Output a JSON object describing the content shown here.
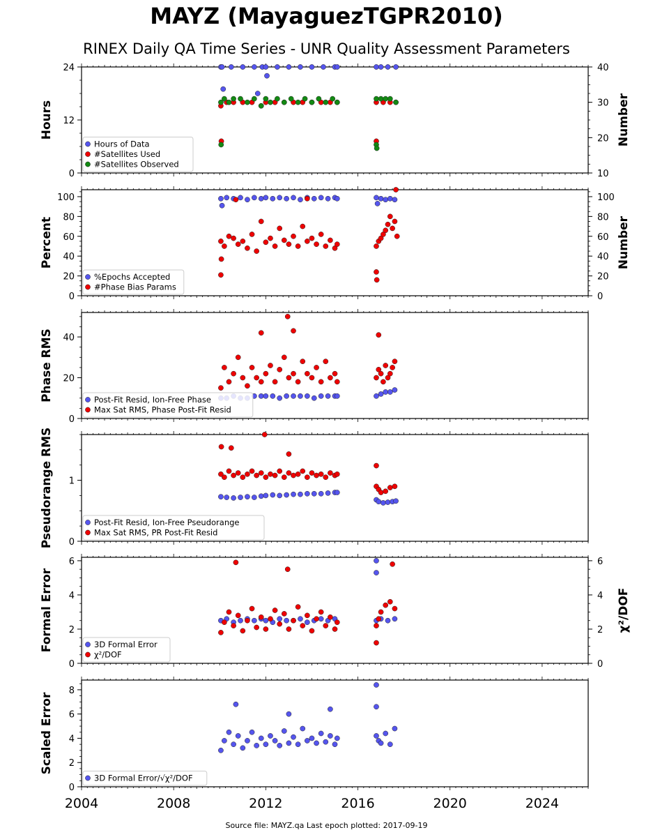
{
  "title": "MAYZ (MayaguezTGPR2010)",
  "subtitle": "RINEX Daily QA Time Series - UNR Quality Assessment Parameters",
  "footer": "Source file: MAYZ.qa Last epoch plotted: 2017-09-19",
  "colors": {
    "blue": "#5555ee",
    "red": "#ee0000",
    "green": "#138a13"
  },
  "x_axis": {
    "range": [
      2004,
      2026
    ],
    "ticks": [
      2004,
      2008,
      2012,
      2016,
      2020,
      2024
    ]
  },
  "chart_data": [
    {
      "type": "scatter",
      "id": "hours",
      "ylabel": "Hours",
      "y2label": "Number",
      "ylim": [
        0,
        24
      ],
      "yticks": [
        0,
        12,
        24
      ],
      "y2lim": [
        10,
        40
      ],
      "y2ticks": [
        10,
        20,
        30,
        40
      ],
      "legend": [
        {
          "label": "Hours of Data",
          "color": "blue"
        },
        {
          "label": "#Satellites Used",
          "color": "red"
        },
        {
          "label": "#Satellites Observed",
          "color": "green"
        }
      ],
      "legend_position": "lower-left",
      "series": [
        {
          "name": "Hours of Data",
          "color": "blue",
          "axis": "left",
          "x": [
            2010.05,
            2010.1,
            2010.5,
            2011.0,
            2011.5,
            2011.85,
            2012.0,
            2012.5,
            2013.0,
            2013.5,
            2014.0,
            2014.5,
            2015.0,
            2015.1,
            2016.8,
            2017.0,
            2017.3,
            2017.65,
            2010.15,
            2011.65,
            2012.05
          ],
          "y": [
            24,
            24,
            24,
            24,
            24,
            24,
            24,
            24,
            24,
            24,
            24,
            24,
            24,
            24,
            24,
            24,
            24,
            24,
            19,
            18,
            22
          ]
        },
        {
          "name": "#Satellites Used",
          "color": "red",
          "axis": "right",
          "x": [
            2010.05,
            2010.3,
            2010.6,
            2011.0,
            2011.4,
            2011.8,
            2012.0,
            2012.4,
            2012.8,
            2013.2,
            2013.6,
            2014.0,
            2014.4,
            2014.8,
            2015.1,
            2016.8,
            2017.1,
            2017.4,
            2017.65,
            2010.07,
            2016.8
          ],
          "y": [
            29,
            30,
            30,
            30,
            30,
            29,
            30,
            30,
            30,
            30,
            30,
            30,
            30,
            30,
            30,
            30,
            30,
            30,
            30,
            19,
            19
          ]
        },
        {
          "name": "#Satellites Observed",
          "color": "green",
          "axis": "right",
          "x": [
            2010.05,
            2010.2,
            2010.4,
            2010.6,
            2010.9,
            2011.2,
            2011.5,
            2011.8,
            2012.0,
            2012.2,
            2012.5,
            2012.8,
            2013.1,
            2013.4,
            2013.7,
            2014.0,
            2014.3,
            2014.6,
            2014.9,
            2015.1,
            2016.8,
            2017.0,
            2017.2,
            2017.4,
            2017.65,
            2010.06,
            2016.8,
            2016.82
          ],
          "y": [
            30,
            31,
            30,
            31,
            31,
            30,
            31,
            29,
            31,
            30,
            31,
            30,
            31,
            30,
            31,
            30,
            31,
            30,
            31,
            30,
            31,
            31,
            31,
            31,
            30,
            18,
            18,
            17
          ]
        }
      ]
    },
    {
      "type": "scatter",
      "id": "percent",
      "ylabel": "Percent",
      "y2label": "Number",
      "ylim": [
        0,
        107
      ],
      "yticks": [
        0,
        20,
        40,
        60,
        80,
        100
      ],
      "y2lim": [
        0,
        107
      ],
      "y2ticks": [
        0,
        20,
        40,
        60,
        80,
        100
      ],
      "legend": [
        {
          "label": "%Epochs Accepted",
          "color": "blue"
        },
        {
          "label": "#Phase Bias Params",
          "color": "red"
        }
      ],
      "legend_position": "lower-left",
      "series": [
        {
          "name": "%Epochs Accepted",
          "color": "blue",
          "axis": "left",
          "x": [
            2010.05,
            2010.3,
            2010.6,
            2010.9,
            2011.2,
            2011.5,
            2011.8,
            2012.0,
            2012.3,
            2012.6,
            2012.9,
            2013.2,
            2013.5,
            2013.8,
            2014.1,
            2014.4,
            2014.7,
            2015.0,
            2015.1,
            2016.8,
            2017.0,
            2017.2,
            2017.4,
            2017.6,
            2010.1,
            2016.85
          ],
          "y": [
            98,
            99,
            98,
            99,
            97,
            99,
            98,
            99,
            98,
            99,
            98,
            99,
            97,
            99,
            98,
            99,
            98,
            99,
            98,
            99,
            98,
            97,
            98,
            97,
            91,
            93
          ]
        },
        {
          "name": "#Phase Bias Params",
          "color": "red",
          "axis": "right",
          "x": [
            2010.05,
            2010.2,
            2010.4,
            2010.6,
            2010.8,
            2011.0,
            2011.2,
            2011.4,
            2011.6,
            2011.8,
            2012.0,
            2012.2,
            2012.4,
            2012.6,
            2012.8,
            2013.0,
            2013.2,
            2013.4,
            2013.6,
            2013.8,
            2014.0,
            2014.2,
            2014.4,
            2014.6,
            2014.8,
            2015.0,
            2015.1,
            2016.8,
            2016.9,
            2017.0,
            2017.1,
            2017.2,
            2017.3,
            2017.4,
            2017.5,
            2017.6,
            2017.7,
            2010.05,
            2010.07,
            2016.8,
            2016.82,
            2017.65,
            2010.7,
            2013.8
          ],
          "y": [
            55,
            50,
            60,
            58,
            52,
            55,
            48,
            62,
            45,
            75,
            54,
            58,
            50,
            68,
            56,
            52,
            60,
            50,
            70,
            55,
            58,
            52,
            62,
            50,
            56,
            48,
            52,
            50,
            55,
            58,
            62,
            66,
            72,
            80,
            68,
            75,
            60,
            21,
            37,
            24,
            16,
            107,
            97,
            98
          ]
        }
      ]
    },
    {
      "type": "scatter",
      "id": "phase",
      "ylabel": "Phase RMS",
      "ylim": [
        0,
        52
      ],
      "yticks": [
        0,
        20,
        40
      ],
      "legend": [
        {
          "label": "Post-Fit Resid, Ion-Free Phase",
          "color": "blue"
        },
        {
          "label": "Max Sat RMS, Phase Post-Fit Resid",
          "color": "red"
        }
      ],
      "legend_position": "lower-left",
      "series": [
        {
          "name": "Post-Fit Resid, Ion-Free Phase",
          "color": "blue",
          "axis": "left",
          "x": [
            2010.05,
            2010.3,
            2010.6,
            2010.9,
            2011.2,
            2011.5,
            2011.8,
            2012.0,
            2012.3,
            2012.6,
            2012.9,
            2013.2,
            2013.5,
            2013.8,
            2014.1,
            2014.4,
            2014.7,
            2015.0,
            2015.1,
            2016.8,
            2017.0,
            2017.2,
            2017.4,
            2017.6
          ],
          "y": [
            10,
            10,
            11,
            10,
            10,
            11,
            11,
            11,
            11,
            10,
            11,
            11,
            11,
            11,
            10,
            11,
            11,
            11,
            11,
            11,
            12,
            13,
            13,
            14
          ]
        },
        {
          "name": "Max Sat RMS, Phase Post-Fit Resid",
          "color": "red",
          "axis": "left",
          "x": [
            2010.05,
            2010.2,
            2010.4,
            2010.6,
            2010.8,
            2011.0,
            2011.2,
            2011.4,
            2011.6,
            2011.8,
            2012.0,
            2012.2,
            2012.4,
            2012.6,
            2012.8,
            2013.0,
            2013.2,
            2013.4,
            2013.6,
            2013.8,
            2014.0,
            2014.2,
            2014.4,
            2014.6,
            2014.8,
            2015.0,
            2015.1,
            2016.8,
            2016.9,
            2017.0,
            2017.1,
            2017.2,
            2017.3,
            2017.4,
            2017.5,
            2017.6,
            2012.95,
            2011.8,
            2016.9,
            2013.2
          ],
          "y": [
            15,
            25,
            18,
            22,
            30,
            20,
            16,
            25,
            20,
            18,
            22,
            26,
            18,
            24,
            30,
            20,
            22,
            18,
            28,
            22,
            20,
            25,
            18,
            28,
            20,
            22,
            18,
            20,
            24,
            22,
            18,
            26,
            20,
            22,
            25,
            28,
            50,
            42,
            41,
            43
          ]
        }
      ]
    },
    {
      "type": "scatter",
      "id": "pseudorange",
      "ylabel": "Pseudorange RMS",
      "ylim": [
        0,
        1.75
      ],
      "yticks": [
        0,
        1
      ],
      "legend": [
        {
          "label": "Post-Fit Resid, Ion-Free Pseudorange",
          "color": "blue"
        },
        {
          "label": "Max Sat RMS, PR Post-Fit Resid",
          "color": "red"
        }
      ],
      "legend_position": "lower-left",
      "series": [
        {
          "name": "Post-Fit Resid, Ion-Free Pseudorange",
          "color": "blue",
          "axis": "left",
          "x": [
            2010.05,
            2010.3,
            2010.6,
            2010.9,
            2011.2,
            2011.5,
            2011.8,
            2012.0,
            2012.3,
            2012.6,
            2012.9,
            2013.2,
            2013.5,
            2013.8,
            2014.1,
            2014.4,
            2014.7,
            2015.0,
            2015.1,
            2016.8,
            2016.9,
            2017.1,
            2017.3,
            2017.5,
            2017.65
          ],
          "y": [
            0.73,
            0.72,
            0.71,
            0.72,
            0.73,
            0.72,
            0.74,
            0.75,
            0.76,
            0.75,
            0.76,
            0.77,
            0.77,
            0.78,
            0.78,
            0.78,
            0.79,
            0.8,
            0.8,
            0.68,
            0.65,
            0.63,
            0.64,
            0.65,
            0.66
          ]
        },
        {
          "name": "Max Sat RMS, PR Post-Fit Resid",
          "color": "red",
          "axis": "left",
          "x": [
            2010.05,
            2010.2,
            2010.4,
            2010.6,
            2010.8,
            2011.0,
            2011.2,
            2011.4,
            2011.6,
            2011.8,
            2012.0,
            2012.2,
            2012.4,
            2012.6,
            2012.8,
            2013.0,
            2013.2,
            2013.4,
            2013.6,
            2013.8,
            2014.0,
            2014.2,
            2014.4,
            2014.6,
            2014.8,
            2015.0,
            2015.1,
            2016.8,
            2016.9,
            2017.0,
            2017.2,
            2017.4,
            2017.6,
            2010.07,
            2011.95,
            2013.0,
            2016.8,
            2010.5
          ],
          "y": [
            1.1,
            1.05,
            1.15,
            1.08,
            1.12,
            1.05,
            1.1,
            1.15,
            1.08,
            1.12,
            1.05,
            1.1,
            1.08,
            1.15,
            1.05,
            1.12,
            1.08,
            1.1,
            1.15,
            1.05,
            1.12,
            1.08,
            1.1,
            1.05,
            1.12,
            1.08,
            1.1,
            0.9,
            0.85,
            0.8,
            0.82,
            0.88,
            0.9,
            1.55,
            1.75,
            1.43,
            1.24,
            1.53
          ]
        }
      ]
    },
    {
      "type": "scatter",
      "id": "formal",
      "ylabel": "Formal Error",
      "y2label": "χ²/DOF",
      "ylim": [
        0,
        6.2
      ],
      "yticks": [
        0,
        2,
        4,
        6
      ],
      "y2lim": [
        0,
        6.2
      ],
      "y2ticks": [
        0,
        2,
        4,
        6
      ],
      "legend": [
        {
          "label": "3D Formal Error",
          "color": "blue"
        },
        {
          "label": "χ²/DOF",
          "color": "red"
        }
      ],
      "legend_position": "lower-left",
      "series": [
        {
          "name": "3D Formal Error",
          "color": "blue",
          "axis": "left",
          "x": [
            2010.05,
            2010.3,
            2010.6,
            2010.9,
            2011.2,
            2011.5,
            2011.8,
            2012.0,
            2012.3,
            2012.6,
            2012.9,
            2013.2,
            2013.5,
            2013.8,
            2014.1,
            2014.4,
            2014.7,
            2015.0,
            2016.8,
            2017.0,
            2017.3,
            2017.6,
            2016.8,
            2016.8
          ],
          "y": [
            2.5,
            2.6,
            2.4,
            2.5,
            2.6,
            2.5,
            2.6,
            2.5,
            2.4,
            2.6,
            2.5,
            2.5,
            2.6,
            2.4,
            2.5,
            2.6,
            2.5,
            2.6,
            2.5,
            2.6,
            2.5,
            2.6,
            6.0,
            5.3
          ]
        },
        {
          "name": "χ²/DOF",
          "color": "red",
          "axis": "right",
          "x": [
            2010.05,
            2010.2,
            2010.4,
            2010.6,
            2010.8,
            2011.0,
            2011.2,
            2011.4,
            2011.6,
            2011.8,
            2012.0,
            2012.2,
            2012.4,
            2012.6,
            2012.8,
            2013.0,
            2013.2,
            2013.4,
            2013.6,
            2013.8,
            2014.0,
            2014.2,
            2014.4,
            2014.6,
            2014.8,
            2015.0,
            2015.1,
            2016.8,
            2016.9,
            2017.0,
            2017.2,
            2017.4,
            2017.6,
            2010.7,
            2012.95,
            2017.5,
            2016.8
          ],
          "y": [
            1.8,
            2.4,
            3.0,
            2.2,
            2.8,
            1.9,
            2.5,
            3.2,
            2.1,
            2.7,
            2.0,
            2.6,
            3.1,
            2.3,
            2.9,
            2.0,
            2.5,
            3.3,
            2.2,
            2.8,
            1.9,
            2.6,
            3.0,
            2.2,
            2.7,
            2.0,
            2.4,
            2.2,
            2.6,
            3.0,
            3.4,
            3.6,
            3.2,
            5.9,
            5.5,
            5.8,
            1.2
          ]
        }
      ]
    },
    {
      "type": "scatter",
      "id": "scaled",
      "ylabel": "Scaled Error",
      "ylim": [
        0,
        8.8
      ],
      "yticks": [
        0,
        2,
        4,
        6,
        8
      ],
      "legend": [
        {
          "label": "3D Formal Error/√χ²/DOF",
          "color": "blue"
        }
      ],
      "legend_position": "lower-left",
      "series": [
        {
          "name": "3D Formal Error/√χ²/DOF",
          "color": "blue",
          "axis": "left",
          "x": [
            2010.05,
            2010.2,
            2010.4,
            2010.6,
            2010.8,
            2011.0,
            2011.2,
            2011.4,
            2011.6,
            2011.8,
            2012.0,
            2012.2,
            2012.4,
            2012.6,
            2012.8,
            2013.0,
            2013.2,
            2013.4,
            2013.6,
            2013.8,
            2014.0,
            2014.2,
            2014.4,
            2014.6,
            2014.8,
            2015.0,
            2015.1,
            2016.8,
            2016.9,
            2017.0,
            2017.2,
            2017.4,
            2017.6,
            2016.8,
            2016.8,
            2010.7,
            2013.0,
            2014.8
          ],
          "y": [
            3.0,
            3.8,
            4.5,
            3.5,
            4.2,
            3.2,
            3.8,
            4.5,
            3.4,
            4.0,
            3.5,
            4.2,
            3.8,
            3.4,
            4.6,
            3.6,
            4.1,
            3.5,
            4.8,
            3.8,
            4.0,
            3.6,
            4.4,
            3.7,
            4.2,
            3.5,
            4.0,
            4.2,
            3.8,
            3.6,
            4.4,
            3.5,
            4.8,
            8.4,
            6.6,
            6.8,
            6.0,
            6.4
          ]
        }
      ]
    }
  ]
}
